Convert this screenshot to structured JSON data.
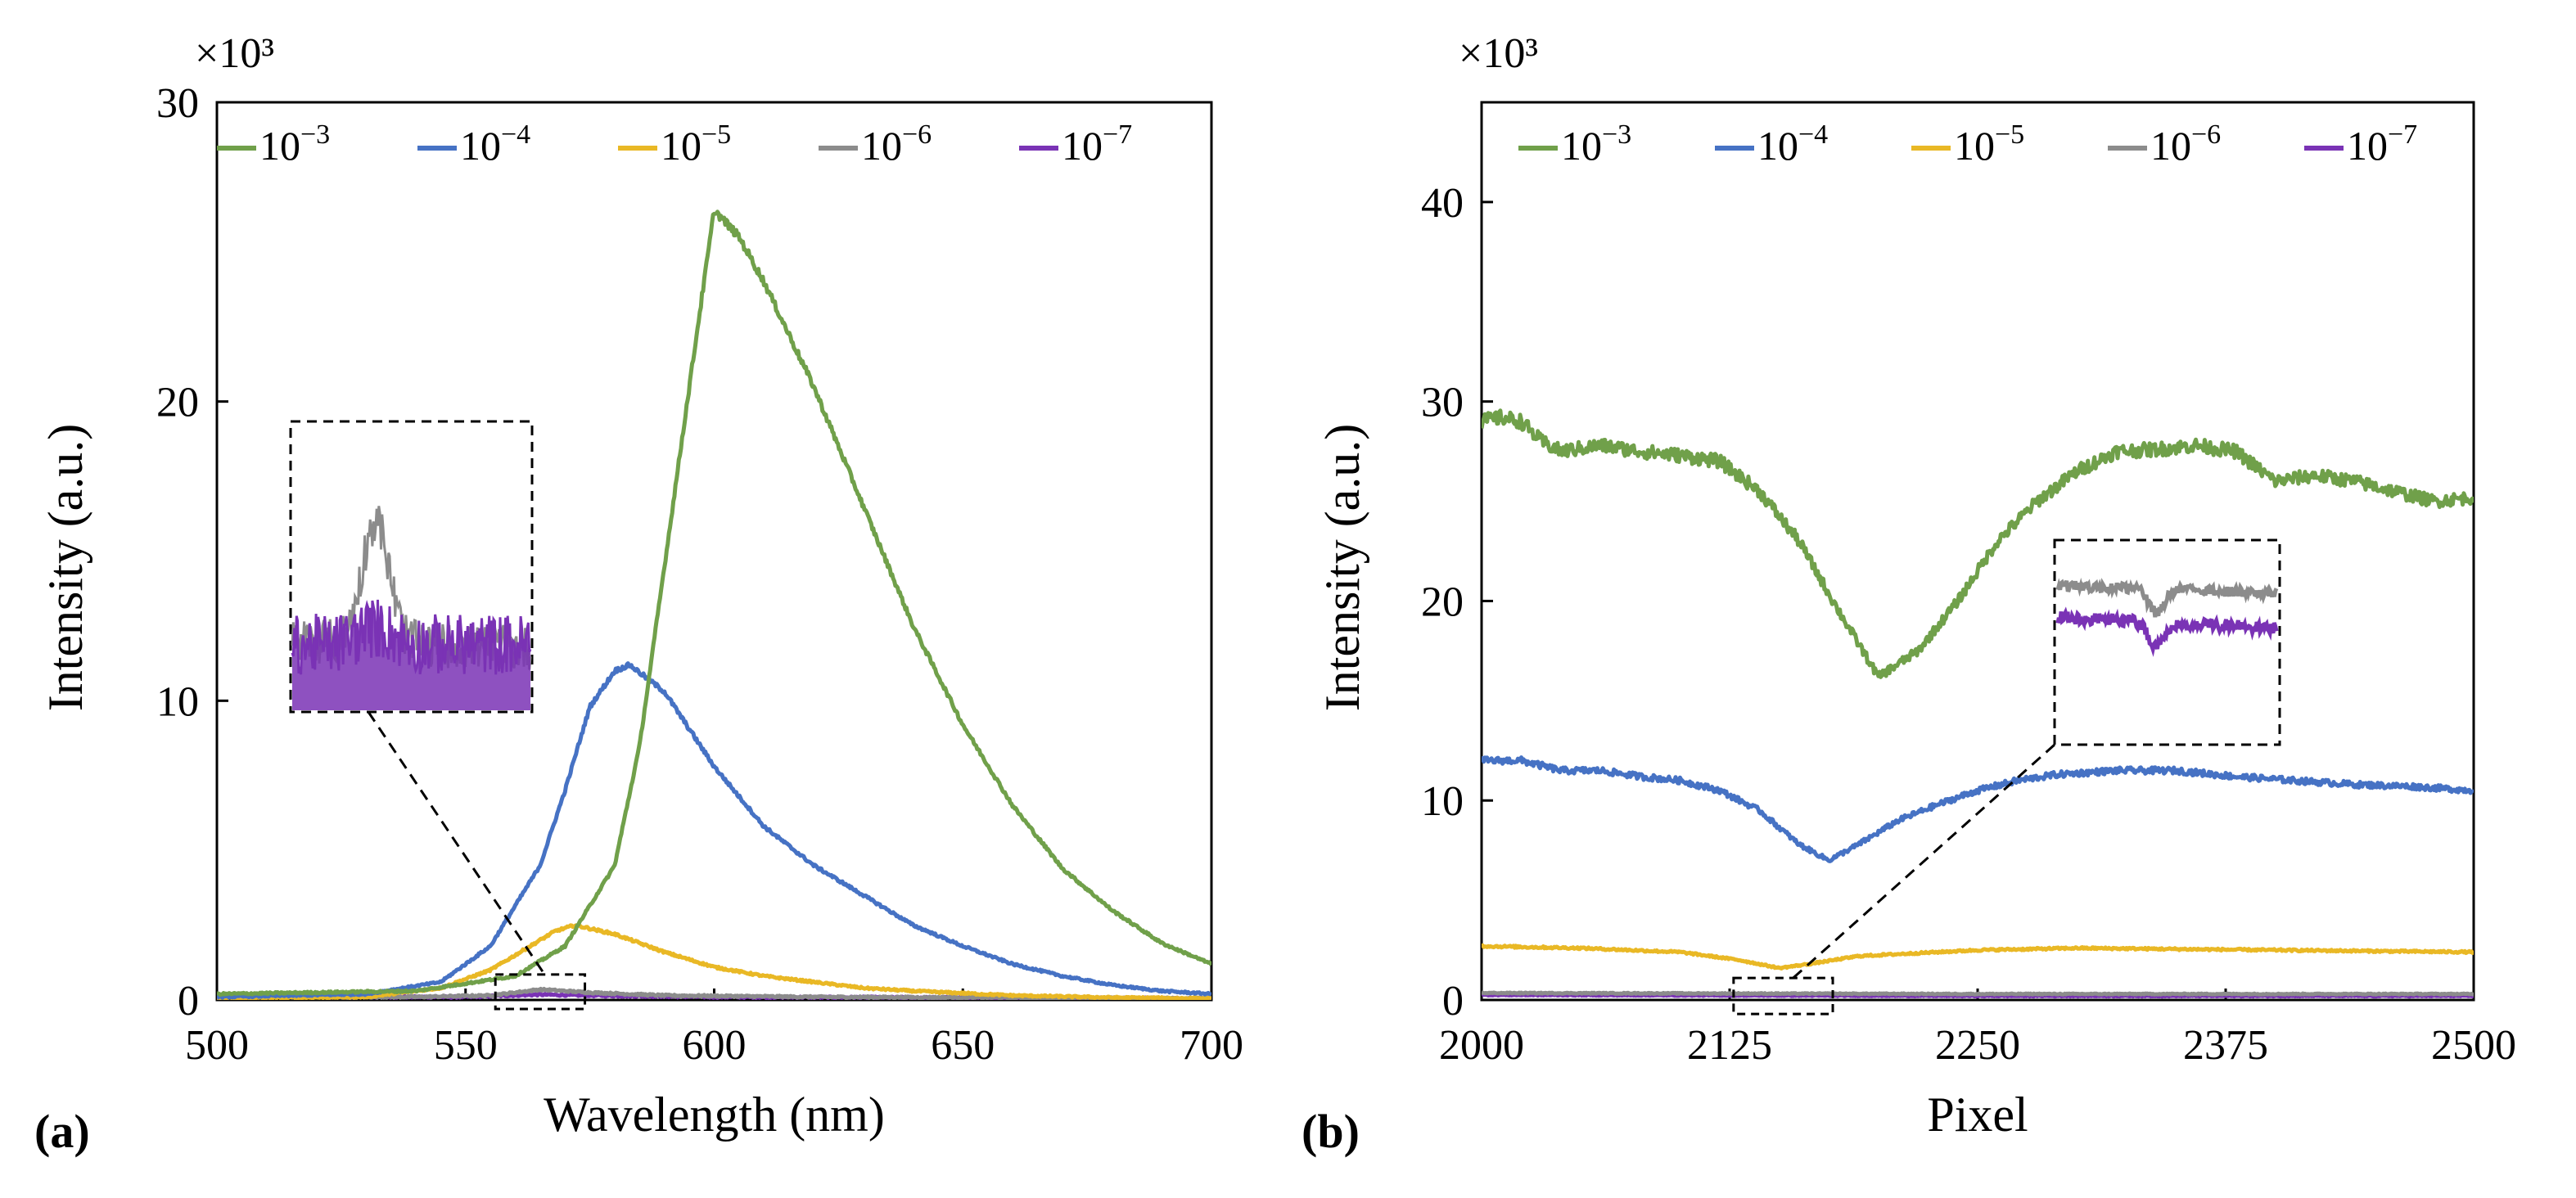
{
  "chart_data": [
    {
      "type": "line",
      "panel_label": "(a)",
      "xlabel": "Wavelength (nm)",
      "ylabel": "Intensity (a.u.)",
      "y_multiplier_label": "×10³",
      "xlim": [
        500,
        700
      ],
      "ylim": [
        0,
        30
      ],
      "xticks": [
        "500",
        "550",
        "600",
        "650",
        "700"
      ],
      "yticks": [
        "0",
        "10",
        "20",
        "30"
      ],
      "grid": false,
      "legend_position": "top",
      "series": [
        {
          "name": "10-3",
          "color": "#70A04A",
          "x": [
            500,
            540,
            560,
            570,
            580,
            585,
            590,
            595,
            600,
            605,
            610,
            620,
            630,
            640,
            650,
            660,
            670,
            680,
            690,
            700
          ],
          "y": [
            0.2,
            0.3,
            0.8,
            1.8,
            4.5,
            8.5,
            14.5,
            20.5,
            26.4,
            25.5,
            24.0,
            20.5,
            16.5,
            12.5,
            9.2,
            6.5,
            4.4,
            3.0,
            1.9,
            1.2
          ]
        },
        {
          "name": "10-4",
          "color": "#4672C4",
          "x": [
            500,
            530,
            545,
            555,
            565,
            570,
            575,
            580,
            583,
            590,
            600,
            610,
            620,
            630,
            640,
            650,
            660,
            670,
            680,
            690,
            700
          ],
          "y": [
            0.1,
            0.2,
            0.6,
            1.8,
            4.5,
            7.0,
            9.8,
            11.0,
            11.2,
            10.3,
            7.8,
            5.8,
            4.5,
            3.5,
            2.5,
            1.8,
            1.2,
            0.8,
            0.5,
            0.3,
            0.2
          ]
        },
        {
          "name": "10-5",
          "color": "#E9B825",
          "x": [
            500,
            530,
            545,
            555,
            562,
            568,
            572,
            580,
            590,
            600,
            610,
            620,
            630,
            640,
            660,
            680,
            700
          ],
          "y": [
            0.05,
            0.1,
            0.4,
            1.0,
            1.7,
            2.3,
            2.5,
            2.2,
            1.6,
            1.1,
            0.8,
            0.6,
            0.4,
            0.3,
            0.15,
            0.08,
            0.05
          ]
        },
        {
          "name": "10-6",
          "color": "#8C8C8C",
          "x": [
            500,
            540,
            555,
            565,
            575,
            590,
            620,
            700
          ],
          "y": [
            0.1,
            0.1,
            0.15,
            0.35,
            0.25,
            0.15,
            0.1,
            0.05
          ]
        },
        {
          "name": "10-7",
          "color": "#7A33B5",
          "x": [
            500,
            550,
            565,
            575,
            600,
            700
          ],
          "y": [
            0.1,
            0.1,
            0.18,
            0.15,
            0.1,
            0.05
          ]
        }
      ]
    },
    {
      "type": "line",
      "panel_label": "(b)",
      "xlabel": "Pixel",
      "ylabel": "Intensity (a.u.)",
      "y_multiplier_label": "×10³",
      "xlim": [
        2000,
        2500
      ],
      "ylim": [
        0,
        45
      ],
      "xticks": [
        "2000",
        "2125",
        "2250",
        "2375",
        "2500"
      ],
      "yticks": [
        "0",
        "10",
        "20",
        "30",
        "40"
      ],
      "grid": false,
      "legend_position": "top",
      "series": [
        {
          "name": "10-3",
          "color": "#70A04A",
          "x": [
            2000,
            2010,
            2020,
            2030,
            2040,
            2060,
            2080,
            2100,
            2120,
            2140,
            2160,
            2180,
            2200,
            2220,
            2240,
            2260,
            2280,
            2300,
            2320,
            2340,
            2360,
            2380,
            2400,
            2420,
            2440,
            2460,
            2480,
            2500
          ],
          "y": [
            29.0,
            29.2,
            29.0,
            28.0,
            27.5,
            27.8,
            27.5,
            27.3,
            27.0,
            25.5,
            23.0,
            19.5,
            16.2,
            17.5,
            20.0,
            23.0,
            25.0,
            26.5,
            27.5,
            27.6,
            27.8,
            27.5,
            26.0,
            26.3,
            26.0,
            25.5,
            25.0,
            25.2
          ]
        },
        {
          "name": "10-4",
          "color": "#4672C4",
          "x": [
            2000,
            2020,
            2040,
            2060,
            2080,
            2100,
            2120,
            2140,
            2160,
            2175,
            2190,
            2210,
            2230,
            2250,
            2270,
            2290,
            2320,
            2350,
            2380,
            2410,
            2440,
            2470,
            2500
          ],
          "y": [
            12.0,
            12.0,
            11.5,
            11.5,
            11.2,
            11.0,
            10.5,
            9.5,
            7.8,
            7.0,
            7.8,
            9.0,
            9.8,
            10.5,
            11.0,
            11.3,
            11.5,
            11.5,
            11.2,
            11.0,
            10.8,
            10.7,
            10.5
          ]
        },
        {
          "name": "10-5",
          "color": "#E9B825",
          "x": [
            2000,
            2050,
            2100,
            2130,
            2150,
            2165,
            2190,
            2250,
            2300,
            2400,
            2500
          ],
          "y": [
            2.7,
            2.6,
            2.4,
            2.0,
            1.6,
            1.8,
            2.2,
            2.5,
            2.6,
            2.5,
            2.4
          ]
        },
        {
          "name": "10-6",
          "color": "#8C8C8C",
          "x": [
            2000,
            2250,
            2500
          ],
          "y": [
            0.35,
            0.3,
            0.3
          ]
        },
        {
          "name": "10-7",
          "color": "#7A33B5",
          "x": [
            2000,
            2250,
            2500
          ],
          "y": [
            0.25,
            0.2,
            0.2
          ]
        }
      ]
    }
  ]
}
